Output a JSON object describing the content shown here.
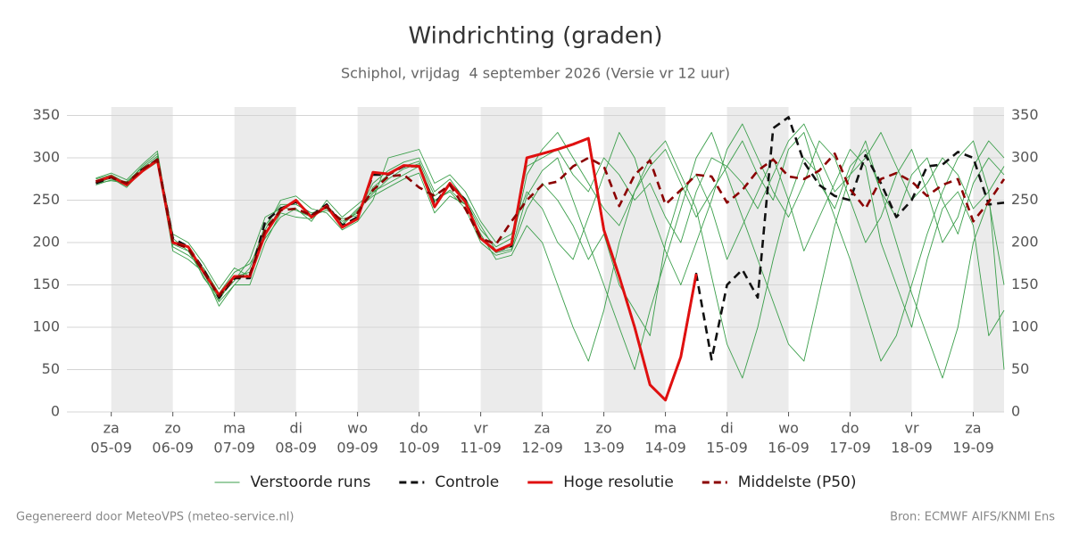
{
  "chart_data": {
    "type": "line",
    "title": "Windrichting (graden)",
    "subtitle": "Schiphol, vrijdag  4 september 2026 (Versie vr 12 uur)",
    "x": [
      -0.25,
      0,
      0.25,
      0.5,
      0.75,
      1,
      1.25,
      1.5,
      1.75,
      2,
      2.25,
      2.5,
      2.75,
      3,
      3.25,
      3.5,
      3.75,
      4,
      4.25,
      4.5,
      4.75,
      5,
      5.25,
      5.5,
      5.75,
      6,
      6.25,
      6.5,
      6.75,
      7,
      7.25,
      7.5,
      7.75,
      8,
      8.25,
      8.5,
      8.75,
      9,
      9.25,
      9.5,
      9.75,
      10,
      10.25,
      10.5,
      10.75,
      11,
      11.25,
      11.5,
      11.75,
      12,
      12.25,
      12.5,
      12.75,
      13,
      13.25,
      13.5,
      13.75,
      14,
      14.25,
      14.5
    ],
    "xlim": [
      -0.72,
      14.5
    ],
    "xticks": [
      {
        "value": 0,
        "label": "za",
        "date": "05-09"
      },
      {
        "value": 1,
        "label": "zo",
        "date": "06-09"
      },
      {
        "value": 2,
        "label": "ma",
        "date": "07-09"
      },
      {
        "value": 3,
        "label": "di",
        "date": "08-09"
      },
      {
        "value": 4,
        "label": "wo",
        "date": "09-09"
      },
      {
        "value": 5,
        "label": "do",
        "date": "10-09"
      },
      {
        "value": 6,
        "label": "vr",
        "date": "11-09"
      },
      {
        "value": 7,
        "label": "za",
        "date": "12-09"
      },
      {
        "value": 8,
        "label": "zo",
        "date": "13-09"
      },
      {
        "value": 9,
        "label": "ma",
        "date": "14-09"
      },
      {
        "value": 10,
        "label": "di",
        "date": "15-09"
      },
      {
        "value": 11,
        "label": "wo",
        "date": "16-09"
      },
      {
        "value": 12,
        "label": "do",
        "date": "17-09"
      },
      {
        "value": 13,
        "label": "vr",
        "date": "18-09"
      },
      {
        "value": 14,
        "label": "za",
        "date": "19-09"
      }
    ],
    "ylim": [
      0,
      360
    ],
    "yticks": [
      0,
      50,
      100,
      150,
      200,
      250,
      300,
      350
    ],
    "grid": true,
    "ensemble": {
      "name": "Verstoorde runs",
      "color": "#3a9e4a",
      "members": [
        [
          275,
          280,
          270,
          290,
          305,
          205,
          190,
          160,
          130,
          150,
          170,
          220,
          245,
          245,
          235,
          240,
          225,
          235,
          270,
          285,
          295,
          300,
          260,
          275,
          250,
          215,
          195,
          205,
          290,
          300,
          310,
          280,
          260,
          300,
          280,
          250,
          270,
          230,
          200,
          260,
          300,
          290,
          320,
          280,
          250,
          310,
          330,
          270,
          240,
          290,
          310,
          260,
          230,
          280,
          300,
          250,
          210,
          270,
          300,
          280
        ],
        [
          270,
          276,
          265,
          285,
          300,
          195,
          185,
          170,
          140,
          165,
          175,
          205,
          230,
          240,
          225,
          250,
          230,
          245,
          260,
          270,
          280,
          290,
          250,
          260,
          240,
          200,
          185,
          190,
          240,
          270,
          250,
          220,
          180,
          210,
          150,
          120,
          90,
          200,
          260,
          280,
          240,
          180,
          220,
          260,
          300,
          250,
          190,
          230,
          270,
          310,
          290,
          200,
          150,
          100,
          180,
          240,
          260,
          220,
          90,
          120
        ],
        [
          268,
          274,
          272,
          288,
          302,
          210,
          200,
          175,
          145,
          170,
          160,
          215,
          250,
          255,
          240,
          235,
          215,
          225,
          250,
          300,
          305,
          310,
          270,
          280,
          260,
          225,
          200,
          210,
          260,
          240,
          200,
          180,
          230,
          280,
          330,
          300,
          240,
          190,
          150,
          200,
          250,
          310,
          340,
          300,
          260,
          230,
          270,
          320,
          300,
          250,
          200,
          230,
          280,
          310,
          260,
          200,
          230,
          290,
          320,
          300
        ],
        [
          272,
          278,
          268,
          283,
          295,
          190,
          180,
          165,
          125,
          150,
          150,
          200,
          235,
          230,
          228,
          245,
          222,
          240,
          255,
          265,
          275,
          282,
          235,
          255,
          245,
          210,
          180,
          185,
          220,
          200,
          150,
          100,
          60,
          120,
          200,
          260,
          300,
          320,
          280,
          240,
          160,
          80,
          40,
          100,
          180,
          250,
          300,
          280,
          230,
          180,
          120,
          60,
          90,
          150,
          210,
          260,
          300,
          320,
          260,
          50
        ],
        [
          276,
          282,
          274,
          292,
          308,
          200,
          195,
          158,
          135,
          155,
          180,
          230,
          240,
          250,
          232,
          238,
          228,
          232,
          265,
          280,
          290,
          296,
          255,
          268,
          252,
          220,
          190,
          195,
          280,
          310,
          330,
          300,
          270,
          240,
          220,
          260,
          290,
          310,
          270,
          230,
          260,
          290,
          270,
          240,
          280,
          320,
          340,
          300,
          260,
          280,
          300,
          330,
          290,
          250,
          270,
          300,
          280,
          240,
          260,
          290
        ],
        [
          270,
          273,
          270,
          286,
          298,
          198,
          190,
          168,
          132,
          160,
          165,
          210,
          242,
          238,
          230,
          244,
          220,
          238,
          258,
          275,
          287,
          293,
          248,
          262,
          245,
          205,
          188,
          192,
          255,
          285,
          300,
          250,
          200,
          150,
          100,
          50,
          120,
          180,
          240,
          300,
          330,
          280,
          230,
          180,
          130,
          80,
          60,
          140,
          220,
          280,
          320,
          260,
          200,
          140,
          90,
          40,
          100,
          200,
          250,
          150
        ]
      ]
    },
    "series": [
      {
        "name": "Controle",
        "color": "#111111",
        "dash": true,
        "values": [
          270,
          277,
          268,
          286,
          298,
          205,
          195,
          168,
          135,
          158,
          158,
          225,
          240,
          248,
          232,
          245,
          220,
          230,
          280,
          280,
          290,
          290,
          245,
          270,
          250,
          205,
          190,
          196,
          300,
          305,
          310,
          316,
          323,
          215,
          160,
          100,
          32,
          14,
          65,
          163,
          62,
          150,
          168,
          135,
          335,
          348,
          295,
          268,
          255,
          250,
          303,
          270,
          230,
          250,
          290,
          292,
          307,
          300,
          245,
          247
        ]
      },
      {
        "name": "Hoge resolutie",
        "color": "#e01010",
        "dash": false,
        "values": [
          272,
          278,
          268,
          284,
          297,
          200,
          195,
          165,
          138,
          160,
          160,
          210,
          238,
          250,
          230,
          243,
          218,
          228,
          283,
          281,
          291,
          290,
          242,
          270,
          248,
          205,
          190,
          198,
          300,
          305,
          310,
          316,
          323,
          215,
          160,
          100,
          32,
          14,
          65,
          163,
          null,
          null,
          null,
          null,
          null,
          null,
          null,
          null,
          null,
          null,
          null,
          null,
          null,
          null,
          null,
          null,
          null,
          null,
          null,
          null
        ]
      },
      {
        "name": "Middelste (P50)",
        "color": "#8b0000",
        "dash": true,
        "values": [
          272,
          277,
          270,
          286,
          298,
          200,
          193,
          165,
          137,
          158,
          162,
          215,
          238,
          240,
          232,
          242,
          225,
          235,
          262,
          278,
          280,
          265,
          255,
          268,
          240,
          205,
          198,
          225,
          250,
          268,
          272,
          290,
          300,
          290,
          243,
          280,
          297,
          245,
          262,
          280,
          278,
          247,
          262,
          285,
          298,
          278,
          275,
          285,
          305,
          263,
          240,
          275,
          282,
          272,
          255,
          268,
          275,
          225,
          248,
          275
        ]
      }
    ]
  },
  "footer": {
    "left": "Gegenereerd door MeteoVPS (meteo-service.nl)",
    "right": "Bron: ECMWF AIFS/KNMI Ens"
  }
}
